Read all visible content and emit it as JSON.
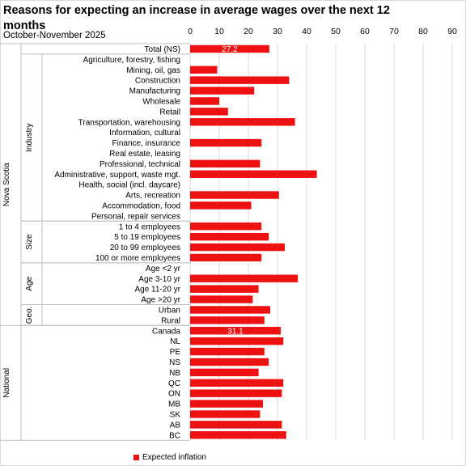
{
  "chart_data": {
    "type": "bar",
    "orientation": "horizontal",
    "title": "Reasons for expecting an increase in average wages over the next 12 months",
    "subtitle": "October-November 2025",
    "xlim": [
      0,
      90
    ],
    "xticks": [
      0,
      10,
      20,
      30,
      40,
      50,
      60,
      70,
      80,
      90
    ],
    "grid": true,
    "legend_position": "bottom",
    "series": [
      {
        "name": "Expected inflation",
        "color": "#ee1111"
      }
    ],
    "groups": [
      {
        "label": "Nova Scotia",
        "start": 0,
        "end": 26
      },
      {
        "label": "National",
        "start": 27,
        "end": 37
      }
    ],
    "subgroups": [
      {
        "label": "Industry",
        "start": 1,
        "end": 16
      },
      {
        "label": "Size",
        "start": 17,
        "end": 20
      },
      {
        "label": "Age",
        "start": 21,
        "end": 24
      },
      {
        "label": "Geo.",
        "start": 25,
        "end": 26
      }
    ],
    "categories": [
      "Total (NS)",
      "Agriculture, forestry, fishing",
      "Mining, oil, gas",
      "Construction",
      "Manufacturing",
      "Wholesale",
      "Retail",
      "Transportation, warehousing",
      "Information, cultural",
      "Finance, insurance",
      "Real estate, leasing",
      "Professional, technical",
      "Administrative, support, waste mgt.",
      "Health, social (incl. daycare)",
      "Arts, recreation",
      "Accommodation, food",
      "Personal, repair services",
      "1 to 4 employees",
      "5 to 19 employees",
      "20 to 99 employees",
      "100 or more employees",
      "Age <2 yr",
      "Age 3-10 yr",
      "Age 11-20 yr",
      "Age >20 yr",
      "Urban",
      "Rural",
      "Canada",
      "NL",
      "PE",
      "NS",
      "NB",
      "QC",
      "ON",
      "MB",
      "SK",
      "AB",
      "BC"
    ],
    "values": [
      27.2,
      0,
      9.3,
      34,
      22,
      10,
      13,
      36,
      0,
      24.5,
      0,
      24,
      43.5,
      0,
      30.5,
      21,
      0,
      24.5,
      27,
      32.5,
      24.5,
      0,
      37,
      23.5,
      21.5,
      27.5,
      25.5,
      31.1,
      32,
      25.5,
      27,
      23.5,
      32,
      31.5,
      25,
      24,
      31.5,
      33
    ],
    "data_labels": [
      {
        "index": 0,
        "text": "27.2"
      },
      {
        "index": 27,
        "text": "31.1"
      }
    ]
  }
}
